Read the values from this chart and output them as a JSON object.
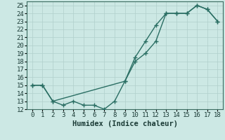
{
  "line1_x": [
    0,
    1,
    2,
    3,
    4,
    5,
    6,
    7,
    8,
    9,
    10,
    11,
    12,
    13,
    14,
    15,
    16,
    17,
    18
  ],
  "line1_y": [
    15,
    15,
    13,
    12.5,
    13,
    12.5,
    12.5,
    12,
    13,
    15.5,
    18.5,
    20.5,
    22.5,
    24,
    24,
    24,
    25,
    24.5,
    23
  ],
  "line2_x": [
    0,
    1,
    2,
    9,
    10,
    11,
    12,
    13,
    14,
    15,
    16,
    17,
    18
  ],
  "line2_y": [
    15,
    15,
    13,
    15.5,
    18,
    19,
    20.5,
    24,
    24,
    24,
    25,
    24.5,
    23
  ],
  "color": "#2a6e63",
  "bg_color": "#cce8e4",
  "grid_color": "#b0cfcb",
  "xlabel": "Humidex (Indice chaleur)",
  "xlim": [
    -0.5,
    18.5
  ],
  "ylim": [
    12,
    25.5
  ],
  "xticks": [
    0,
    1,
    2,
    3,
    4,
    5,
    6,
    7,
    8,
    9,
    10,
    11,
    12,
    13,
    14,
    15,
    16,
    17,
    18
  ],
  "yticks": [
    12,
    13,
    14,
    15,
    16,
    17,
    18,
    19,
    20,
    21,
    22,
    23,
    24,
    25
  ],
  "marker": "+",
  "markersize": 4,
  "linewidth": 1.0,
  "xlabel_fontsize": 7.5,
  "tick_fontsize": 6.5
}
